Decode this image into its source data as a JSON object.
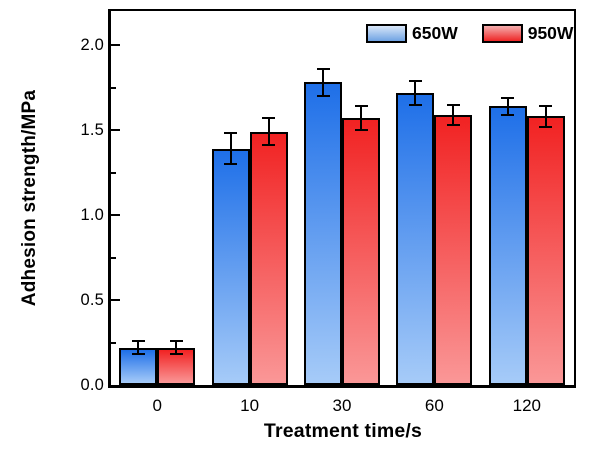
{
  "chart_data": {
    "type": "bar",
    "title": "",
    "xlabel": "Treatment time/s",
    "ylabel": "Adhesion strength/MPa",
    "categories": [
      "0",
      "10",
      "30",
      "60",
      "120"
    ],
    "series": [
      {
        "name": "650W",
        "values": [
          0.22,
          1.39,
          1.78,
          1.72,
          1.64
        ],
        "errors": [
          0.04,
          0.09,
          0.08,
          0.07,
          0.05
        ],
        "bar_color_top": "#1E6FE8",
        "bar_color_bottom": "#A6CBF8",
        "swatch_color_top": "#D9E7F9",
        "swatch_color_bottom": "#6FA3E3"
      },
      {
        "name": "950W",
        "values": [
          0.22,
          1.49,
          1.57,
          1.59,
          1.58
        ],
        "errors": [
          0.04,
          0.08,
          0.07,
          0.06,
          0.06
        ],
        "bar_color_top": "#F12222",
        "bar_color_bottom": "#FA9797",
        "swatch_color_top": "#F5AFAF",
        "swatch_color_bottom": "#EE2525"
      }
    ],
    "ylim": [
      0,
      2.2
    ],
    "yticks_major": [
      0.0,
      0.5,
      1.0,
      1.5,
      2.0
    ],
    "ytick_labels": [
      "0.0",
      "0.5",
      "1.0",
      "1.5",
      "2.0"
    ],
    "yminor_step": 0.25,
    "grid": false,
    "legend_position": "top-right-inside",
    "error_bar_color": "#000000",
    "frame_color": "#000000"
  }
}
